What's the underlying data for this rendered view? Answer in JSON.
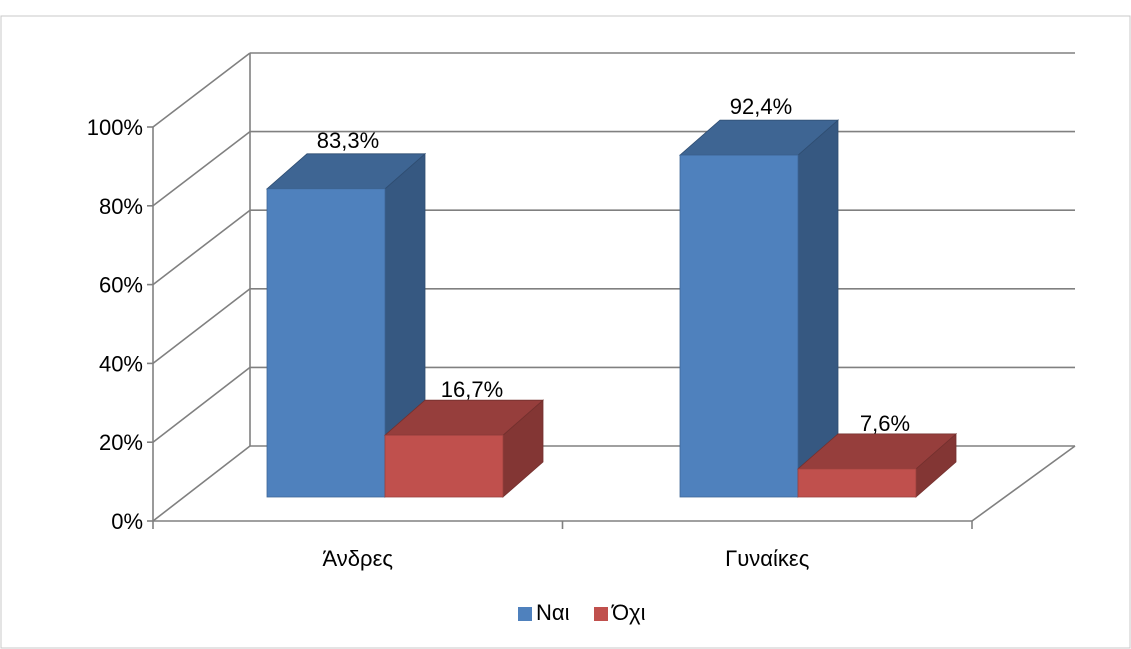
{
  "chart_data": {
    "type": "bar",
    "categories": [
      "Άνδρες",
      "Γυναίκες"
    ],
    "series": [
      {
        "name": "Ναι",
        "values": [
          83.3,
          92.4
        ],
        "labels": [
          "83,3%",
          "92,4%"
        ]
      },
      {
        "name": "Όχι",
        "values": [
          16.7,
          7.6
        ],
        "labels": [
          "16,7%",
          "7,6%"
        ]
      }
    ],
    "y_ticks": [
      "0%",
      "20%",
      "40%",
      "60%",
      "80%",
      "100%"
    ],
    "ylim": [
      0,
      100
    ],
    "grid": true,
    "three_d": true,
    "legend": "bottom",
    "colors": {
      "Ναι": "#4F81BD",
      "Όχι": "#C0504D",
      "grid": "#808080",
      "frame": "#c8c8c8"
    }
  }
}
